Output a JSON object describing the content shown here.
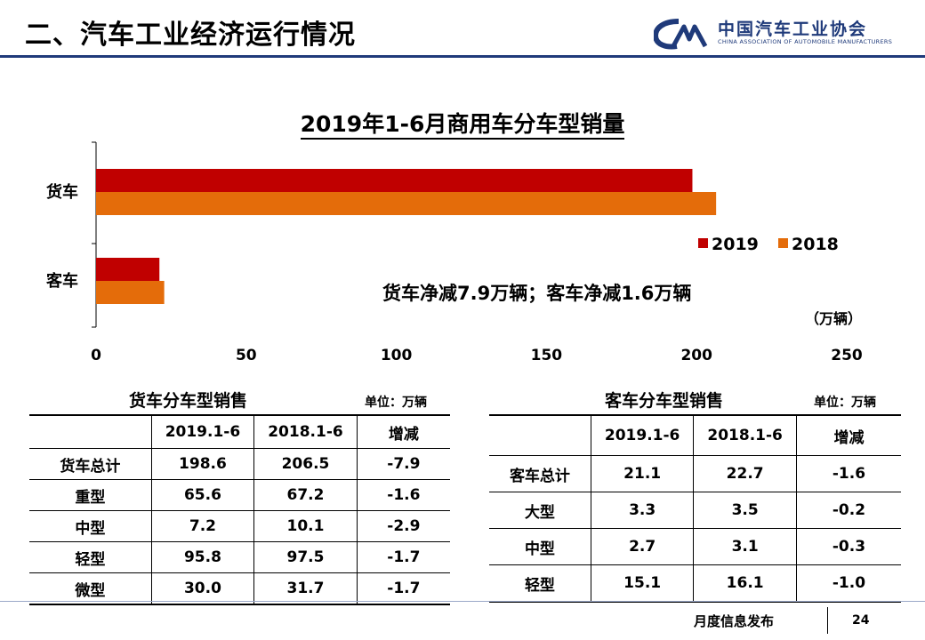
{
  "header": {
    "title": "二、汽车工业经济运行情况",
    "logo_cn": "中国汽车工业协会",
    "logo_en": "CHINA ASSOCIATION OF AUTOMOBILE MANUFACTURERS",
    "logo_mark": "CAM"
  },
  "chart_data": {
    "type": "bar",
    "orientation": "horizontal",
    "title": "2019年1-6月商用车分车型销量",
    "categories": [
      "货车",
      "客车"
    ],
    "series": [
      {
        "name": "2019",
        "color": "#c00000",
        "values": [
          198.6,
          21.1
        ]
      },
      {
        "name": "2018",
        "color": "#e46c0a",
        "values": [
          206.5,
          22.7
        ]
      }
    ],
    "xlim": [
      0,
      250
    ],
    "xticks": [
      "0",
      "50",
      "100",
      "150",
      "200",
      "250"
    ],
    "unit": "（万辆）",
    "annotation": "货车净减7.9万辆；客车净减1.6万辆",
    "legend_position": "right"
  },
  "truck_table": {
    "title": "货车分车型销售",
    "unit": "单位：万辆",
    "headers": [
      "",
      "2019.1-6",
      "2018.1-6",
      "增减"
    ],
    "rows": [
      [
        "货车总计",
        "198.6",
        "206.5",
        "-7.9"
      ],
      [
        "重型",
        "65.6",
        "67.2",
        "-1.6"
      ],
      [
        "中型",
        "7.2",
        "10.1",
        "-2.9"
      ],
      [
        "轻型",
        "95.8",
        "97.5",
        "-1.7"
      ],
      [
        "微型",
        "30.0",
        "31.7",
        "-1.7"
      ]
    ]
  },
  "bus_table": {
    "title": "客车分车型销售",
    "unit": "单位：万辆",
    "headers": [
      "",
      "2019.1-6",
      "2018.1-6",
      "增减"
    ],
    "rows": [
      [
        "客车总计",
        "21.1",
        "22.7",
        "-1.6"
      ],
      [
        "大型",
        "3.3",
        "3.5",
        "-0.2"
      ],
      [
        "中型",
        "2.7",
        "3.1",
        "-0.3"
      ],
      [
        "轻型",
        "15.1",
        "16.1",
        "-1.0"
      ]
    ]
  },
  "footer": {
    "text": "月度信息发布",
    "page": "24"
  }
}
